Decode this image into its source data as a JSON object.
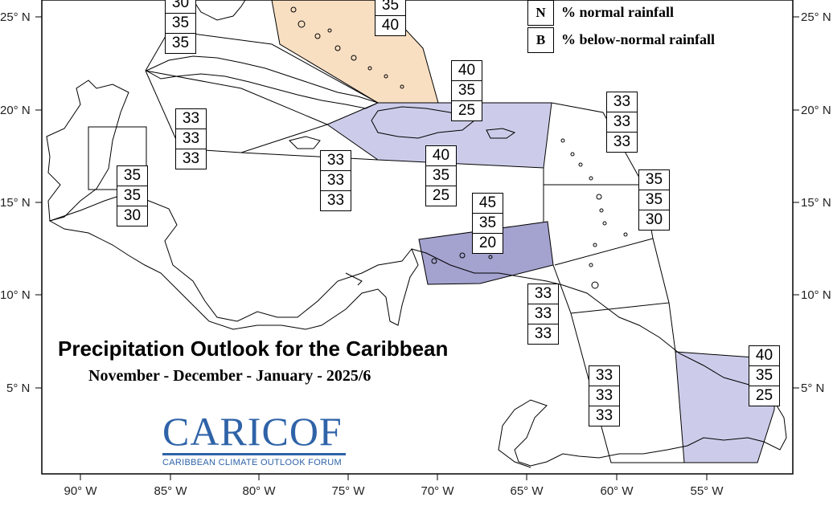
{
  "map": {
    "title": "Precipitation Outlook for the Caribbean",
    "subtitle": "November - December - January - 2025/6",
    "lat_labels_left": [
      "25° N",
      "20° N",
      "15° N",
      "10° N",
      "5° N"
    ],
    "lat_labels_right": [
      "25° N",
      "20° N",
      "15° N",
      "10° N",
      "5° N"
    ],
    "lon_labels": [
      "90° W",
      "85° W",
      "80° W",
      "75° W",
      "70° W",
      "65° W",
      "60° W",
      "55° W"
    ],
    "legend": [
      {
        "key": "N",
        "text": "% normal rainfall"
      },
      {
        "key": "B",
        "text": "% below-normal rainfall"
      }
    ],
    "colors": {
      "above_normal_fill": "#f9dfc2",
      "below_light_fill": "#ccccea",
      "below_dark_fill": "#a4a2cf",
      "logo_blue": "#2f63a8"
    },
    "zones": [
      {
        "id": "north-west",
        "values": [
          "30",
          "35",
          "35"
        ]
      },
      {
        "id": "bahamas",
        "values": [
          "35",
          "40"
        ]
      },
      {
        "id": "cuba-central",
        "values": [
          "33",
          "33",
          "33"
        ]
      },
      {
        "id": "belize",
        "values": [
          "35",
          "35",
          "30"
        ]
      },
      {
        "id": "jamaica",
        "values": [
          "33",
          "33",
          "33"
        ]
      },
      {
        "id": "hispaniola-puerto-rico",
        "values": [
          "40",
          "35",
          "25"
        ]
      },
      {
        "id": "caribbean-central",
        "values": [
          "40",
          "35",
          "25"
        ]
      },
      {
        "id": "northeast-atlantic",
        "values": [
          "33",
          "33",
          "33"
        ]
      },
      {
        "id": "leeward-islands",
        "values": [
          "35",
          "35",
          "30"
        ]
      },
      {
        "id": "abc-islands",
        "values": [
          "45",
          "35",
          "20"
        ]
      },
      {
        "id": "trinidad-venezuela",
        "values": [
          "33",
          "33",
          "33"
        ]
      },
      {
        "id": "guyana",
        "values": [
          "33",
          "33",
          "33"
        ]
      },
      {
        "id": "suriname-guiana",
        "values": [
          "40",
          "35",
          "25"
        ]
      }
    ]
  },
  "logo": {
    "text_cari": "CARI",
    "text_cof": "COF",
    "tagline": "CARIBBEAN CLIMATE OUTLOOK FORUM"
  }
}
